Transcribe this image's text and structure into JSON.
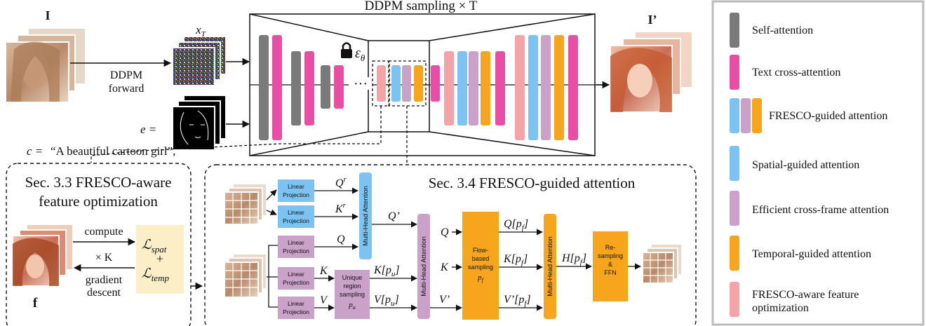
{
  "colors": {
    "self_attention": "#7a7a7a",
    "text_cross_attention": "#e84ea6",
    "spatial_guided": "#7cc3f2",
    "cross_frame": "#c9a1c9",
    "temporal_guided": "#f7a51c",
    "feature_opt": "#f5a3a6",
    "loss_box": "#fcefc7"
  },
  "top": {
    "input_label": "I",
    "output_label": "I’",
    "xT_label": "x",
    "xT_sub": "T",
    "ddpm_forward_1": "DDPM",
    "ddpm_forward_2": "forward",
    "e_label": "e =",
    "c_label": "c =",
    "c_value": "“A beautiful cartoon girl”,",
    "sampling_title": "DDPM sampling × T",
    "eps_label": "ε",
    "eps_sub": "θ",
    "dots": "···"
  },
  "legend": {
    "items": [
      {
        "key": "self",
        "label": "Self-attention"
      },
      {
        "key": "text",
        "label": "Text cross-attention"
      },
      {
        "key": "fresco",
        "label": "FRESCO-guided attention"
      },
      {
        "key": "spatial",
        "label": "Spatial-guided attention"
      },
      {
        "key": "crossframe",
        "label": "Efficient cross-frame attention"
      },
      {
        "key": "temporal",
        "label": "Temporal-guided attention"
      },
      {
        "key": "featopt",
        "label": "FRESCO-aware feature",
        "label2": "optimization"
      }
    ]
  },
  "sec33": {
    "title1": "Sec. 3.3 FRESCO-aware",
    "title2": "feature optimization",
    "compute": "compute",
    "times_k": "× K",
    "gradient": "gradient",
    "descent": "descent",
    "f_label": "f",
    "l_spat": "ℒ",
    "l_spat_sub": "spat",
    "plus": "+",
    "l_temp": "ℒ",
    "l_temp_sub": "temp"
  },
  "sec34": {
    "title": "Sec. 3.4 FRESCO-guided attention",
    "linear1": "Linear",
    "linear2": "Projection",
    "mha": "Multi-Head Attention",
    "unique1": "Unique",
    "unique2": "region",
    "unique3": "sampling",
    "unique4": "pu",
    "flow1": "Flow-",
    "flow2": "based",
    "flow3": "sampling",
    "flow4": "pf",
    "resample1": "Re-",
    "resample2": "sampling",
    "resample3": "&",
    "resample4": "FFN",
    "qr": "Qr",
    "kr": "Kr",
    "q_prime": "Q’",
    "q": "Q",
    "k": "K",
    "v": "V",
    "k_pu": "K[pu]",
    "v_pu": "V[pu]",
    "v_prime": "V’",
    "q_pf": "Q[pf]",
    "k_pf": "K[pf]",
    "vp_pf": "V’[pf]",
    "h_pf": "H[pf]"
  }
}
